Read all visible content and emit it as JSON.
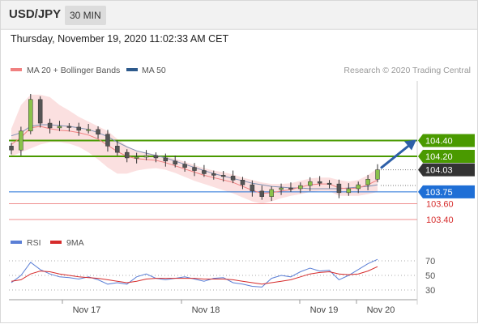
{
  "header": {
    "symbol": "USD/JPY",
    "timeframe": "30 MIN"
  },
  "timestamp": "Thursday, November 19, 2020 11:02:33 AM CET",
  "chart_data": [
    {
      "type": "line",
      "legend": [
        {
          "label": "MA 20 + Bollinger Bands",
          "color": "#f08080"
        },
        {
          "label": "MA 50",
          "color": "#2d5a8c"
        }
      ],
      "copyright": "Research © 2020 Trading Central",
      "x_ticks": [
        "Nov 17",
        "Nov 18",
        "Nov 19",
        "Nov 20"
      ],
      "price_levels": [
        {
          "label": "104.40",
          "value": 104.4,
          "color": "#4a9a00",
          "style": "resistance"
        },
        {
          "label": "104.20",
          "value": 104.2,
          "color": "#4a9a00",
          "style": "resistance"
        },
        {
          "label": "104.03",
          "value": 104.03,
          "color": "#333333",
          "style": "last"
        },
        {
          "label": "103.75",
          "value": 103.75,
          "color": "#1f6fd6",
          "style": "pivot"
        },
        {
          "label": "103.60",
          "value": 103.6,
          "color": "#d62b2b",
          "style": "support"
        },
        {
          "label": "103.40",
          "value": 103.4,
          "color": "#d62b2b",
          "style": "support"
        }
      ],
      "price": [
        104.28,
        104.52,
        104.92,
        104.62,
        104.56,
        104.58,
        104.57,
        104.53,
        104.54,
        104.48,
        104.33,
        104.25,
        104.18,
        104.19,
        104.21,
        104.18,
        104.14,
        104.1,
        104.06,
        104.02,
        103.98,
        103.96,
        103.95,
        103.9,
        103.84,
        103.76,
        103.69,
        103.78,
        103.8,
        103.79,
        103.83,
        103.88,
        103.86,
        103.85,
        103.74,
        103.79,
        103.84,
        103.91,
        104.03
      ],
      "ma20": [
        104.35,
        104.44,
        104.56,
        104.58,
        104.55,
        104.53,
        104.52,
        104.5,
        104.47,
        104.42,
        104.34,
        104.26,
        104.2,
        104.17,
        104.16,
        104.15,
        104.12,
        104.08,
        104.04,
        104.0,
        103.96,
        103.93,
        103.9,
        103.87,
        103.82,
        103.77,
        103.73,
        103.74,
        103.76,
        103.78,
        103.81,
        103.84,
        103.85,
        103.85,
        103.8,
        103.79,
        103.8,
        103.84,
        103.9
      ],
      "ma50": [
        104.46,
        104.5,
        104.58,
        104.6,
        104.6,
        104.59,
        104.58,
        104.56,
        104.54,
        104.5,
        104.45,
        104.38,
        104.32,
        104.27,
        104.24,
        104.21,
        104.18,
        104.14,
        104.1,
        104.06,
        104.02,
        103.98,
        103.95,
        103.92,
        103.89,
        103.86,
        103.84,
        103.82,
        103.81,
        103.8,
        103.8,
        103.79,
        103.79,
        103.79,
        103.79,
        103.8,
        103.81,
        103.82,
        103.84
      ],
      "bb_upper": [
        104.55,
        104.85,
        104.98,
        104.98,
        104.95,
        104.85,
        104.78,
        104.7,
        104.64,
        104.58,
        104.52,
        104.42,
        104.33,
        104.27,
        104.25,
        104.22,
        104.2,
        104.17,
        104.13,
        104.09,
        104.05,
        104.02,
        104.0,
        103.97,
        103.93,
        103.9,
        103.87,
        103.85,
        103.85,
        103.86,
        103.89,
        103.92,
        103.93,
        103.93,
        103.9,
        103.88,
        103.9,
        103.96,
        104.05
      ],
      "bb_lower": [
        104.2,
        104.25,
        104.3,
        104.35,
        104.38,
        104.38,
        104.36,
        104.32,
        104.25,
        104.16,
        104.06,
        103.98,
        103.98,
        104.02,
        104.04,
        104.05,
        104.03,
        103.99,
        103.94,
        103.89,
        103.85,
        103.81,
        103.77,
        103.73,
        103.68,
        103.63,
        103.6,
        103.63,
        103.67,
        103.7,
        103.72,
        103.75,
        103.76,
        103.76,
        103.7,
        103.7,
        103.7,
        103.72,
        103.75
      ]
    },
    {
      "type": "line",
      "legend": [
        {
          "label": "RSI",
          "color": "#5b7fd6"
        },
        {
          "label": "9MA",
          "color": "#d62b2b"
        }
      ],
      "y_ticks": [
        "70",
        "50",
        "30"
      ],
      "ylim": [
        20,
        80
      ],
      "rsi": [
        40,
        50,
        68,
        58,
        52,
        48,
        47,
        45,
        48,
        44,
        38,
        40,
        38,
        48,
        52,
        46,
        44,
        46,
        48,
        45,
        42,
        46,
        47,
        40,
        38,
        35,
        34,
        46,
        50,
        48,
        55,
        60,
        56,
        57,
        44,
        50,
        58,
        66,
        72
      ],
      "rsi_ma": [
        42,
        44,
        52,
        56,
        55,
        52,
        50,
        48,
        47,
        46,
        44,
        42,
        40,
        42,
        45,
        46,
        46,
        46,
        46,
        46,
        45,
        45,
        45,
        44,
        42,
        40,
        38,
        40,
        42,
        44,
        48,
        52,
        54,
        55,
        52,
        51,
        52,
        56,
        62
      ]
    }
  ]
}
